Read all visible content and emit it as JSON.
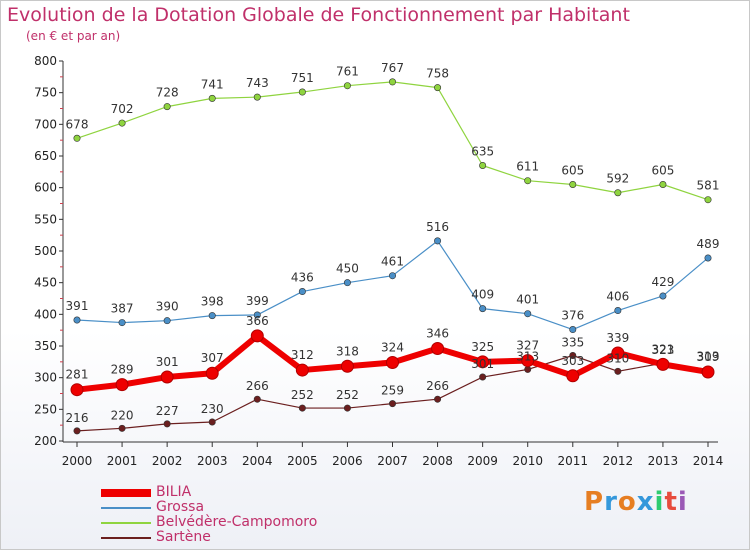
{
  "title": "Evolution de la Dotation Globale de Fonctionnement par Habitant",
  "subtitle": "(en € et par an)",
  "logo_text": "Proxiti",
  "logo_colors": [
    "#e67e22",
    "#3498db",
    "#e67e22",
    "#3498db",
    "#2ecc71",
    "#e74c3c",
    "#9b59b6"
  ],
  "chart_data": {
    "type": "line",
    "title": "Evolution de la Dotation Globale de Fonctionnement par Habitant",
    "subtitle": "(en € et par an)",
    "xlabel": "",
    "ylabel": "",
    "x": [
      2000,
      2001,
      2002,
      2003,
      2004,
      2005,
      2006,
      2007,
      2008,
      2009,
      2010,
      2011,
      2012,
      2013,
      2014
    ],
    "ylim": [
      200,
      800
    ],
    "yticks": [
      200,
      250,
      300,
      350,
      400,
      450,
      500,
      550,
      600,
      650,
      700,
      750,
      800
    ],
    "grid": false,
    "legend_position": "bottom-left",
    "series": [
      {
        "name": "BILIA",
        "color": "#ee0000",
        "values": [
          281,
          289,
          301,
          307,
          366,
          312,
          318,
          324,
          346,
          325,
          327,
          303,
          339,
          321,
          309
        ]
      },
      {
        "name": "Grossa",
        "color": "#4a8fc7",
        "values": [
          391,
          387,
          390,
          398,
          399,
          436,
          450,
          461,
          516,
          409,
          401,
          376,
          406,
          429,
          489
        ]
      },
      {
        "name": "Belvédère-Campomoro",
        "color": "#8fd43f",
        "values": [
          678,
          702,
          728,
          741,
          743,
          751,
          761,
          767,
          758,
          635,
          611,
          605,
          592,
          605,
          581
        ]
      },
      {
        "name": "Sartène",
        "color": "#6b1f1f",
        "values": [
          216,
          220,
          227,
          230,
          266,
          252,
          252,
          259,
          266,
          301,
          313,
          335,
          310,
          323,
          313
        ]
      }
    ]
  }
}
